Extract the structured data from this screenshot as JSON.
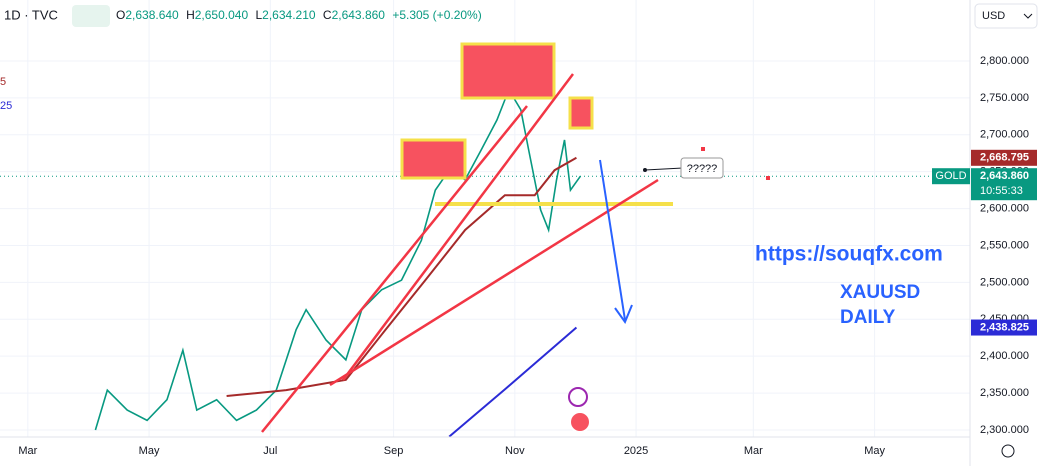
{
  "header": {
    "symbol": "1D · TVC",
    "open_label": "O",
    "open": "2,638.640",
    "high_label": "H",
    "high": "2,650.040",
    "low_label": "L",
    "low": "2,634.210",
    "close_label": "C",
    "close": "2,643.860",
    "change": "+5.305 (+0.20%)",
    "indicator_values": [
      "5",
      "25"
    ],
    "currency": "USD"
  },
  "chart_data": {
    "type": "line",
    "annotations": {
      "url": "https://souqfx.com",
      "label_lines": [
        "XAUUSD",
        "DAILY"
      ],
      "callout": "?????"
    },
    "xlim": [
      -14,
      474
    ],
    "xticks": [
      {
        "value": 0,
        "label": "Mar"
      },
      {
        "value": 61,
        "label": "May"
      },
      {
        "value": 122,
        "label": "Jul"
      },
      {
        "value": 184,
        "label": "Sep"
      },
      {
        "value": 245,
        "label": "Nov"
      },
      {
        "value": 306,
        "label": "2025"
      },
      {
        "value": 365,
        "label": "Mar"
      },
      {
        "value": 426,
        "label": "May"
      }
    ],
    "ylim": [
      2290.5,
      2882.6
    ],
    "yticks": [
      {
        "value": 2300,
        "label": "2,300.000"
      },
      {
        "value": 2350,
        "label": "2,350.000"
      },
      {
        "value": 2400,
        "label": "2,400.000"
      },
      {
        "value": 2450,
        "label": "2,450.000"
      },
      {
        "value": 2500,
        "label": "2,500.000"
      },
      {
        "value": 2550,
        "label": "2,550.000"
      },
      {
        "value": 2600,
        "label": "2,600.000"
      },
      {
        "value": 2650,
        "label": "2,650.000"
      },
      {
        "value": 2700,
        "label": "2,700.000"
      },
      {
        "value": 2750,
        "label": "2,750.000"
      },
      {
        "value": 2800,
        "label": "2,800.000"
      }
    ],
    "series": [
      {
        "color": "#089981",
        "x": [
          34,
          40,
          50,
          60,
          70,
          78,
          85,
          95,
          105,
          115,
          125,
          135,
          140,
          150,
          160,
          168,
          178,
          188,
          198,
          205,
          212,
          220,
          228,
          236,
          242,
          248,
          252,
          258,
          262,
          266,
          270,
          273,
          278
        ],
        "values": [
          2300,
          2354,
          2327,
          2313,
          2341,
          2408,
          2327,
          2341,
          2313,
          2327,
          2354,
          2436,
          2463,
          2422,
          2395,
          2463,
          2490,
          2503,
          2557,
          2625,
          2652,
          2639,
          2679,
          2720,
          2761,
          2734,
          2679,
          2598,
          2571,
          2639,
          2693,
          2625,
          2643.86
        ]
      },
      {
        "color": "#a52a2a",
        "x": [
          100,
          130,
          160,
          180,
          200,
          220,
          240,
          255,
          265,
          276
        ],
        "values": [
          2346,
          2354,
          2368,
          2436,
          2503,
          2571,
          2618,
          2618,
          2652,
          2668.795
        ]
      },
      {
        "color": "#2b2bd6",
        "x": [
          212,
          240,
          276
        ],
        "values": [
          2291,
          2355,
          2438.825
        ]
      }
    ],
    "price_badges": [
      {
        "value": 2668.795,
        "label": "2,668.795",
        "color": "#a52a2a"
      },
      {
        "value": 2643.86,
        "label": "2,643.860",
        "symbol": "GOLD",
        "countdown": "10:55:33",
        "color": "#089981"
      },
      {
        "value": 2438.825,
        "label": "2,438.825",
        "color": "#2b2bd6"
      }
    ]
  }
}
